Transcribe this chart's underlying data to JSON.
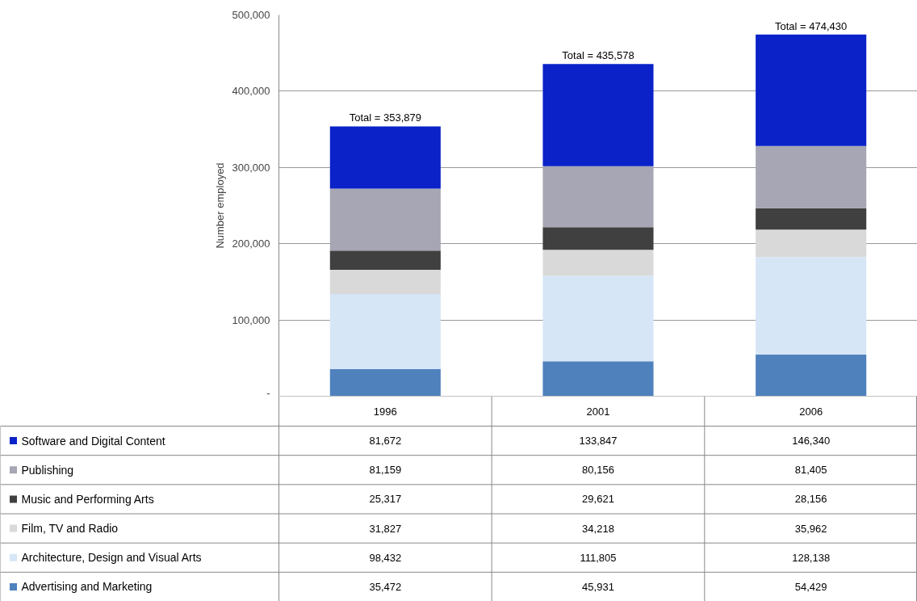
{
  "chart_data": {
    "type": "bar",
    "stacked": true,
    "ylabel": "Number employed",
    "categories": [
      "1996",
      "2001",
      "2006"
    ],
    "series": [
      {
        "name": "Advertising and Marketing",
        "color": "#4f81bd",
        "values": [
          35472,
          45931,
          54429
        ],
        "value_labels": [
          "35,472",
          "45,931",
          "54,429"
        ]
      },
      {
        "name": "Architecture, Design and Visual Arts",
        "color": "#d6e6f7",
        "values": [
          98432,
          111805,
          128138
        ],
        "value_labels": [
          "98,432",
          "111,805",
          "128,138"
        ]
      },
      {
        "name": "Film, TV and Radio",
        "color": "#d9d9d9",
        "values": [
          31827,
          34218,
          35962
        ],
        "value_labels": [
          "31,827",
          "34,218",
          "35,962"
        ]
      },
      {
        "name": "Music and Performing Arts",
        "color": "#404040",
        "values": [
          25317,
          29621,
          28156
        ],
        "value_labels": [
          "25,317",
          "29,621",
          "28,156"
        ]
      },
      {
        "name": "Publishing",
        "color": "#a6a6b4",
        "values": [
          81159,
          80156,
          81405
        ],
        "value_labels": [
          "81,159",
          "80,156",
          "81,405"
        ]
      },
      {
        "name": "Software and Digital Content",
        "color": "#0a22c8",
        "values": [
          81672,
          133847,
          146340
        ],
        "value_labels": [
          "81,672",
          "133,847",
          "146,340"
        ]
      }
    ],
    "ylim": [
      0,
      500000
    ],
    "yticks": [
      {
        "value": 0,
        "label": "-"
      },
      {
        "value": 100000,
        "label": "100,000"
      },
      {
        "value": 200000,
        "label": "200,000"
      },
      {
        "value": 300000,
        "label": "300,000"
      },
      {
        "value": 400000,
        "label": "400,000"
      },
      {
        "value": 500000,
        "label": "500,000"
      }
    ],
    "totals": [
      "Total = 353,879",
      "Total = 435,578",
      "Total = 474,430"
    ],
    "grid": "y",
    "legend": "bottom"
  }
}
